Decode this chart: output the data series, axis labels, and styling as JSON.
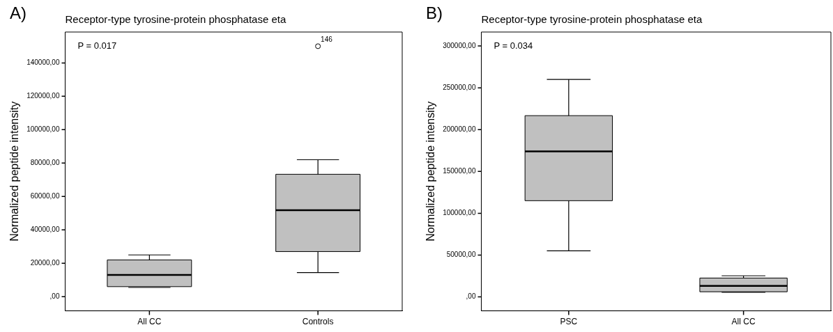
{
  "chart_data": [
    {
      "type": "box",
      "title": "Receptor-type tyrosine-protein phosphatase eta",
      "ylabel": "Normalized peptide intensity",
      "categories": [
        "All CC",
        "Controls"
      ],
      "color": "#c0c0c0",
      "boxes": [
        {
          "low": 5500,
          "q1": 6000,
          "median": 13000,
          "q3": 22000,
          "high": 25000
        },
        {
          "low": 14400,
          "q1": 27000,
          "median": 51800,
          "q3": 73300,
          "high": 82000,
          "outliers": [
            150000
          ]
        }
      ],
      "ylim": [
        -8500,
        158500
      ],
      "yticks": [
        {
          "value": 0,
          "label": ",00"
        },
        {
          "value": 20000,
          "label": "20000,00"
        },
        {
          "value": 40000,
          "label": "40000,00"
        },
        {
          "value": 60000,
          "label": "60000,00"
        },
        {
          "value": 80000,
          "label": "80000,00"
        },
        {
          "value": 100000,
          "label": "100000,00"
        },
        {
          "value": 120000,
          "label": "120000,00"
        },
        {
          "value": 140000,
          "label": "140000,00"
        }
      ],
      "grid": false,
      "legend": false,
      "annotations": [
        "A)",
        "P = 0.017",
        "146"
      ]
    },
    {
      "type": "box",
      "title": "Receptor-type tyrosine-protein phosphatase eta",
      "ylabel": "Normalized peptide intensity",
      "categories": [
        "PSC",
        "All CC"
      ],
      "color": "#c0c0c0",
      "boxes": [
        {
          "low": 55000,
          "q1": 115000,
          "median": 174000,
          "q3": 216700,
          "high": 260000
        },
        {
          "low": 5500,
          "q1": 6100,
          "median": 13100,
          "q3": 22500,
          "high": 25200
        }
      ],
      "ylim": [
        -16700,
        316700
      ],
      "yticks": [
        {
          "value": 0,
          "label": ",00"
        },
        {
          "value": 50000,
          "label": "50000,00"
        },
        {
          "value": 100000,
          "label": "100000,00"
        },
        {
          "value": 150000,
          "label": "150000,00"
        },
        {
          "value": 200000,
          "label": "200000,00"
        },
        {
          "value": 250000,
          "label": "250000,00"
        },
        {
          "value": 300000,
          "label": "300000,00"
        }
      ],
      "grid": false,
      "legend": false,
      "annotations": [
        "B)",
        "P = 0.034"
      ]
    }
  ]
}
